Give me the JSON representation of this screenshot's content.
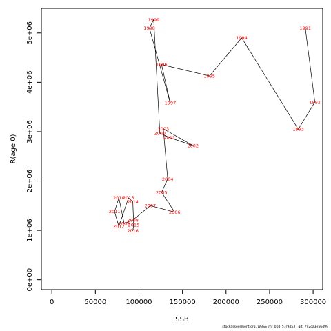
{
  "chart_data": {
    "type": "scatter",
    "title": "",
    "xlabel": "SSB",
    "ylabel": "R(age 0)",
    "xlim": [
      -12000,
      311000
    ],
    "ylim": [
      -200000,
      5500000
    ],
    "x_ticks": [
      0,
      50000,
      100000,
      150000,
      200000,
      250000,
      300000
    ],
    "x_tick_labels": [
      "0",
      "50000",
      "100000",
      "150000",
      "200000",
      "250000",
      "300000"
    ],
    "y_ticks": [
      0,
      1000000,
      2000000,
      3000000,
      4000000,
      5000000
    ],
    "y_tick_labels": [
      "0e+00",
      "1e+06",
      "2e+06",
      "3e+06",
      "4e+06",
      "5e+06"
    ],
    "grid": false,
    "point_color": "#ff0000",
    "line_color": "#000000",
    "points": [
      {
        "year": "1991",
        "x": 291000,
        "y": 5100000
      },
      {
        "year": "1992",
        "x": 302000,
        "y": 3600000
      },
      {
        "year": "1993",
        "x": 283000,
        "y": 3050000
      },
      {
        "year": "1994",
        "x": 218000,
        "y": 4900000
      },
      {
        "year": "1995",
        "x": 181000,
        "y": 4130000
      },
      {
        "year": "1996",
        "x": 126000,
        "y": 4360000
      },
      {
        "year": "1997",
        "x": 136000,
        "y": 3580000
      },
      {
        "year": "1998",
        "x": 112000,
        "y": 5100000
      },
      {
        "year": "1999",
        "x": 117000,
        "y": 5270000
      },
      {
        "year": "2000",
        "x": 124000,
        "y": 2970000
      },
      {
        "year": "2001",
        "x": 135000,
        "y": 2880000
      },
      {
        "year": "2002",
        "x": 162000,
        "y": 2720000
      },
      {
        "year": "2003",
        "x": 128000,
        "y": 3060000
      },
      {
        "year": "2004",
        "x": 133000,
        "y": 2040000
      },
      {
        "year": "2005",
        "x": 126000,
        "y": 1770000
      },
      {
        "year": "2006",
        "x": 141000,
        "y": 1370000
      },
      {
        "year": "2007",
        "x": 113000,
        "y": 1500000
      },
      {
        "year": "2008",
        "x": 93000,
        "y": 1210000
      },
      {
        "year": "2009",
        "x": 83000,
        "y": 1140000
      },
      {
        "year": "2010",
        "x": 77000,
        "y": 1660000
      },
      {
        "year": "2011",
        "x": 72000,
        "y": 1380000
      },
      {
        "year": "2012",
        "x": 77000,
        "y": 1080000
      },
      {
        "year": "2013",
        "x": 88000,
        "y": 1660000
      },
      {
        "year": "2014",
        "x": 93000,
        "y": 1580000
      },
      {
        "year": "2015",
        "x": 94000,
        "y": 1110000
      },
      {
        "year": "2016",
        "x": 93000,
        "y": 990000
      }
    ]
  },
  "footer": "stockassessment.org, WBSS_mf_004_5, r9453 , git: 792ca3e56499"
}
